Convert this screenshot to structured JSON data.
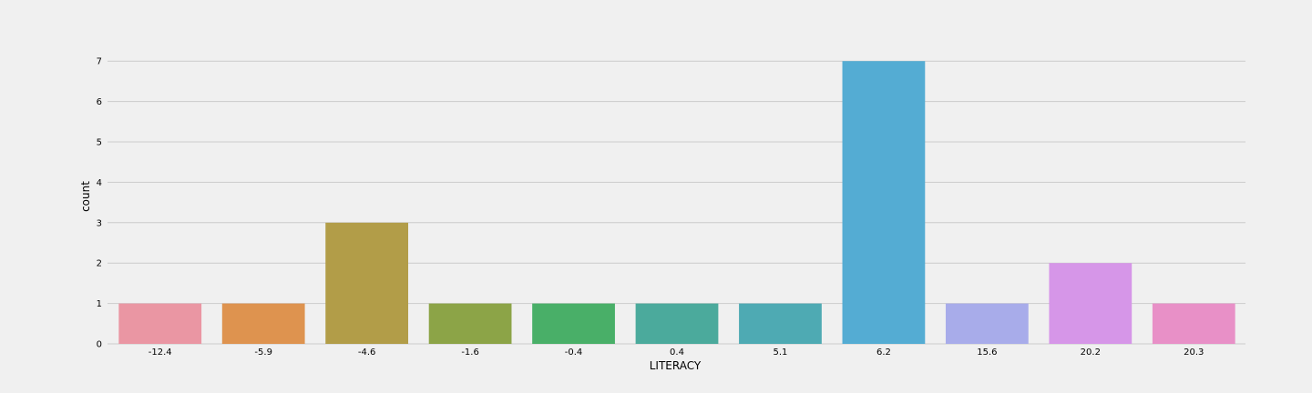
{
  "chart_data": {
    "type": "bar",
    "categories": [
      "-12.4",
      "-5.9",
      "-4.6",
      "-1.6",
      "-0.4",
      "0.4",
      "5.1",
      "6.2",
      "15.6",
      "20.2",
      "20.3"
    ],
    "values": [
      1,
      1,
      3,
      1,
      1,
      1,
      1,
      7,
      1,
      2,
      1
    ],
    "xlabel": "LITERACY",
    "ylabel": "count",
    "ylim": [
      0,
      7.5
    ],
    "yticks": [
      0,
      1,
      2,
      3,
      4,
      5,
      6,
      7
    ],
    "grid": true,
    "colors": [
      "#ea96a3",
      "#de934f",
      "#b29d48",
      "#8ca447",
      "#49af68",
      "#4baa9c",
      "#4eaab3",
      "#54acd3",
      "#a8acea",
      "#d696e8",
      "#e890c7"
    ]
  }
}
